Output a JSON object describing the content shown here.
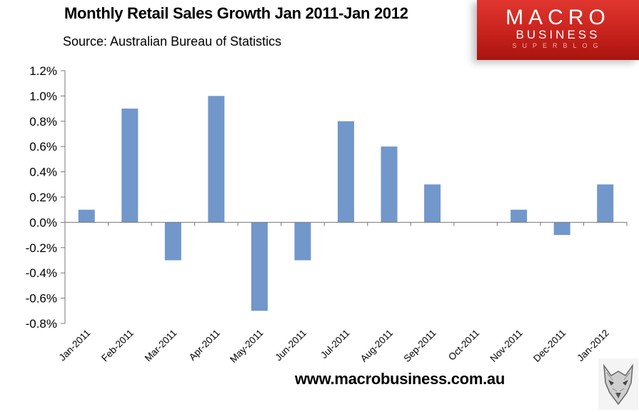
{
  "header": {
    "title": "Monthly Retail Sales Growth Jan 2011-Jan 2012",
    "subtitle": "Source: Australian Bureau of Statistics"
  },
  "logo": {
    "line1": "MACRO",
    "line2": "BUSINESS",
    "line3": "SUPERBLOG",
    "icon": "macrobusiness-logo"
  },
  "footer": {
    "url": "www.macrobusiness.com.au",
    "icon": "wolf-icon"
  },
  "colors": {
    "bar": "#7297cb",
    "logo_red": "#d42a24",
    "grid": "#dddddd"
  },
  "chart_data": {
    "type": "bar",
    "title": "Monthly Retail Sales Growth Jan 2011-Jan 2012",
    "subtitle": "Source: Australian Bureau of Statistics",
    "xlabel": "",
    "ylabel": "",
    "categories": [
      "Jan-2011",
      "Feb-2011",
      "Mar-2011",
      "Apr-2011",
      "May-2011",
      "Jun-2011",
      "Jul-2011",
      "Aug-2011",
      "Sep-2011",
      "Oct-2011",
      "Nov-2011",
      "Dec-2011",
      "Jan-2012"
    ],
    "values": [
      0.1,
      0.9,
      -0.3,
      1.0,
      -0.7,
      -0.3,
      0.8,
      0.6,
      0.3,
      0.0,
      0.1,
      -0.1,
      0.3
    ],
    "ylim": [
      -0.8,
      1.2
    ],
    "yticks": [
      1.2,
      1.0,
      0.8,
      0.6,
      0.4,
      0.2,
      0.0,
      -0.2,
      -0.4,
      -0.6,
      -0.8
    ],
    "ytick_labels": [
      "1.2%",
      "1.0%",
      "0.8%",
      "0.6%",
      "0.4%",
      "0.2%",
      "0.0%",
      "-0.2%",
      "-0.4%",
      "-0.6%",
      "-0.8%"
    ],
    "grid": false,
    "legend": "none"
  }
}
